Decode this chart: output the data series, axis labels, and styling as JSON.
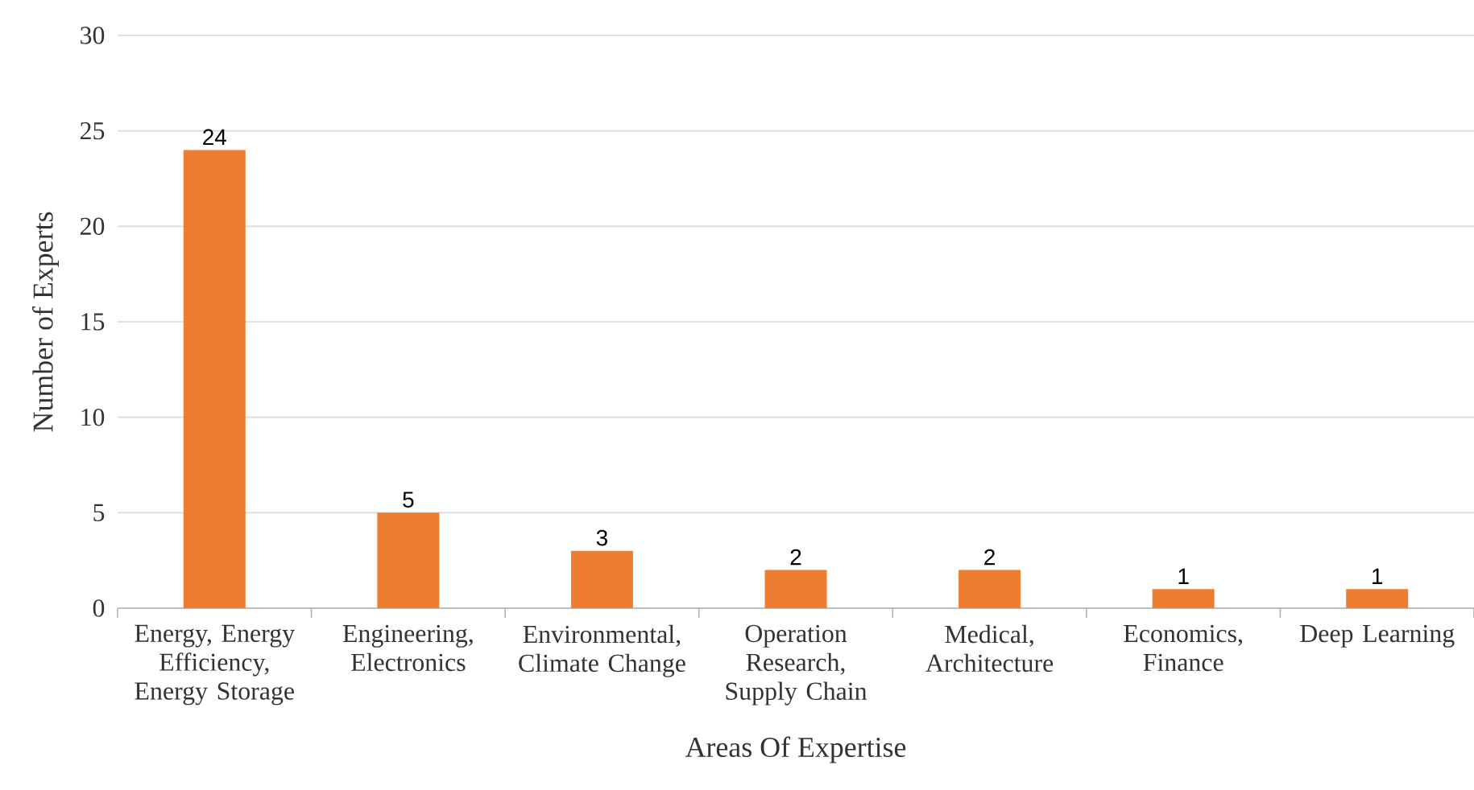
{
  "chart_data": {
    "type": "bar",
    "xlabel": "Areas Of Expertise",
    "ylabel": "Number of Experts",
    "categories": [
      "Energy, Energy Efficiency, Energy Storage",
      "Engineering, Electronics",
      "Environmental, Climate Change",
      "Operation Research, Supply Chain",
      "Medical, Architecture",
      "Economics, Finance",
      "Deep Learning"
    ],
    "values": [
      24,
      5,
      3,
      2,
      2,
      1,
      1
    ],
    "color": "#ed7d31",
    "ylim": [
      0,
      30
    ],
    "yticks": [
      0,
      5,
      10,
      15,
      20,
      25,
      30
    ],
    "grid": "y",
    "data_labels": true
  }
}
